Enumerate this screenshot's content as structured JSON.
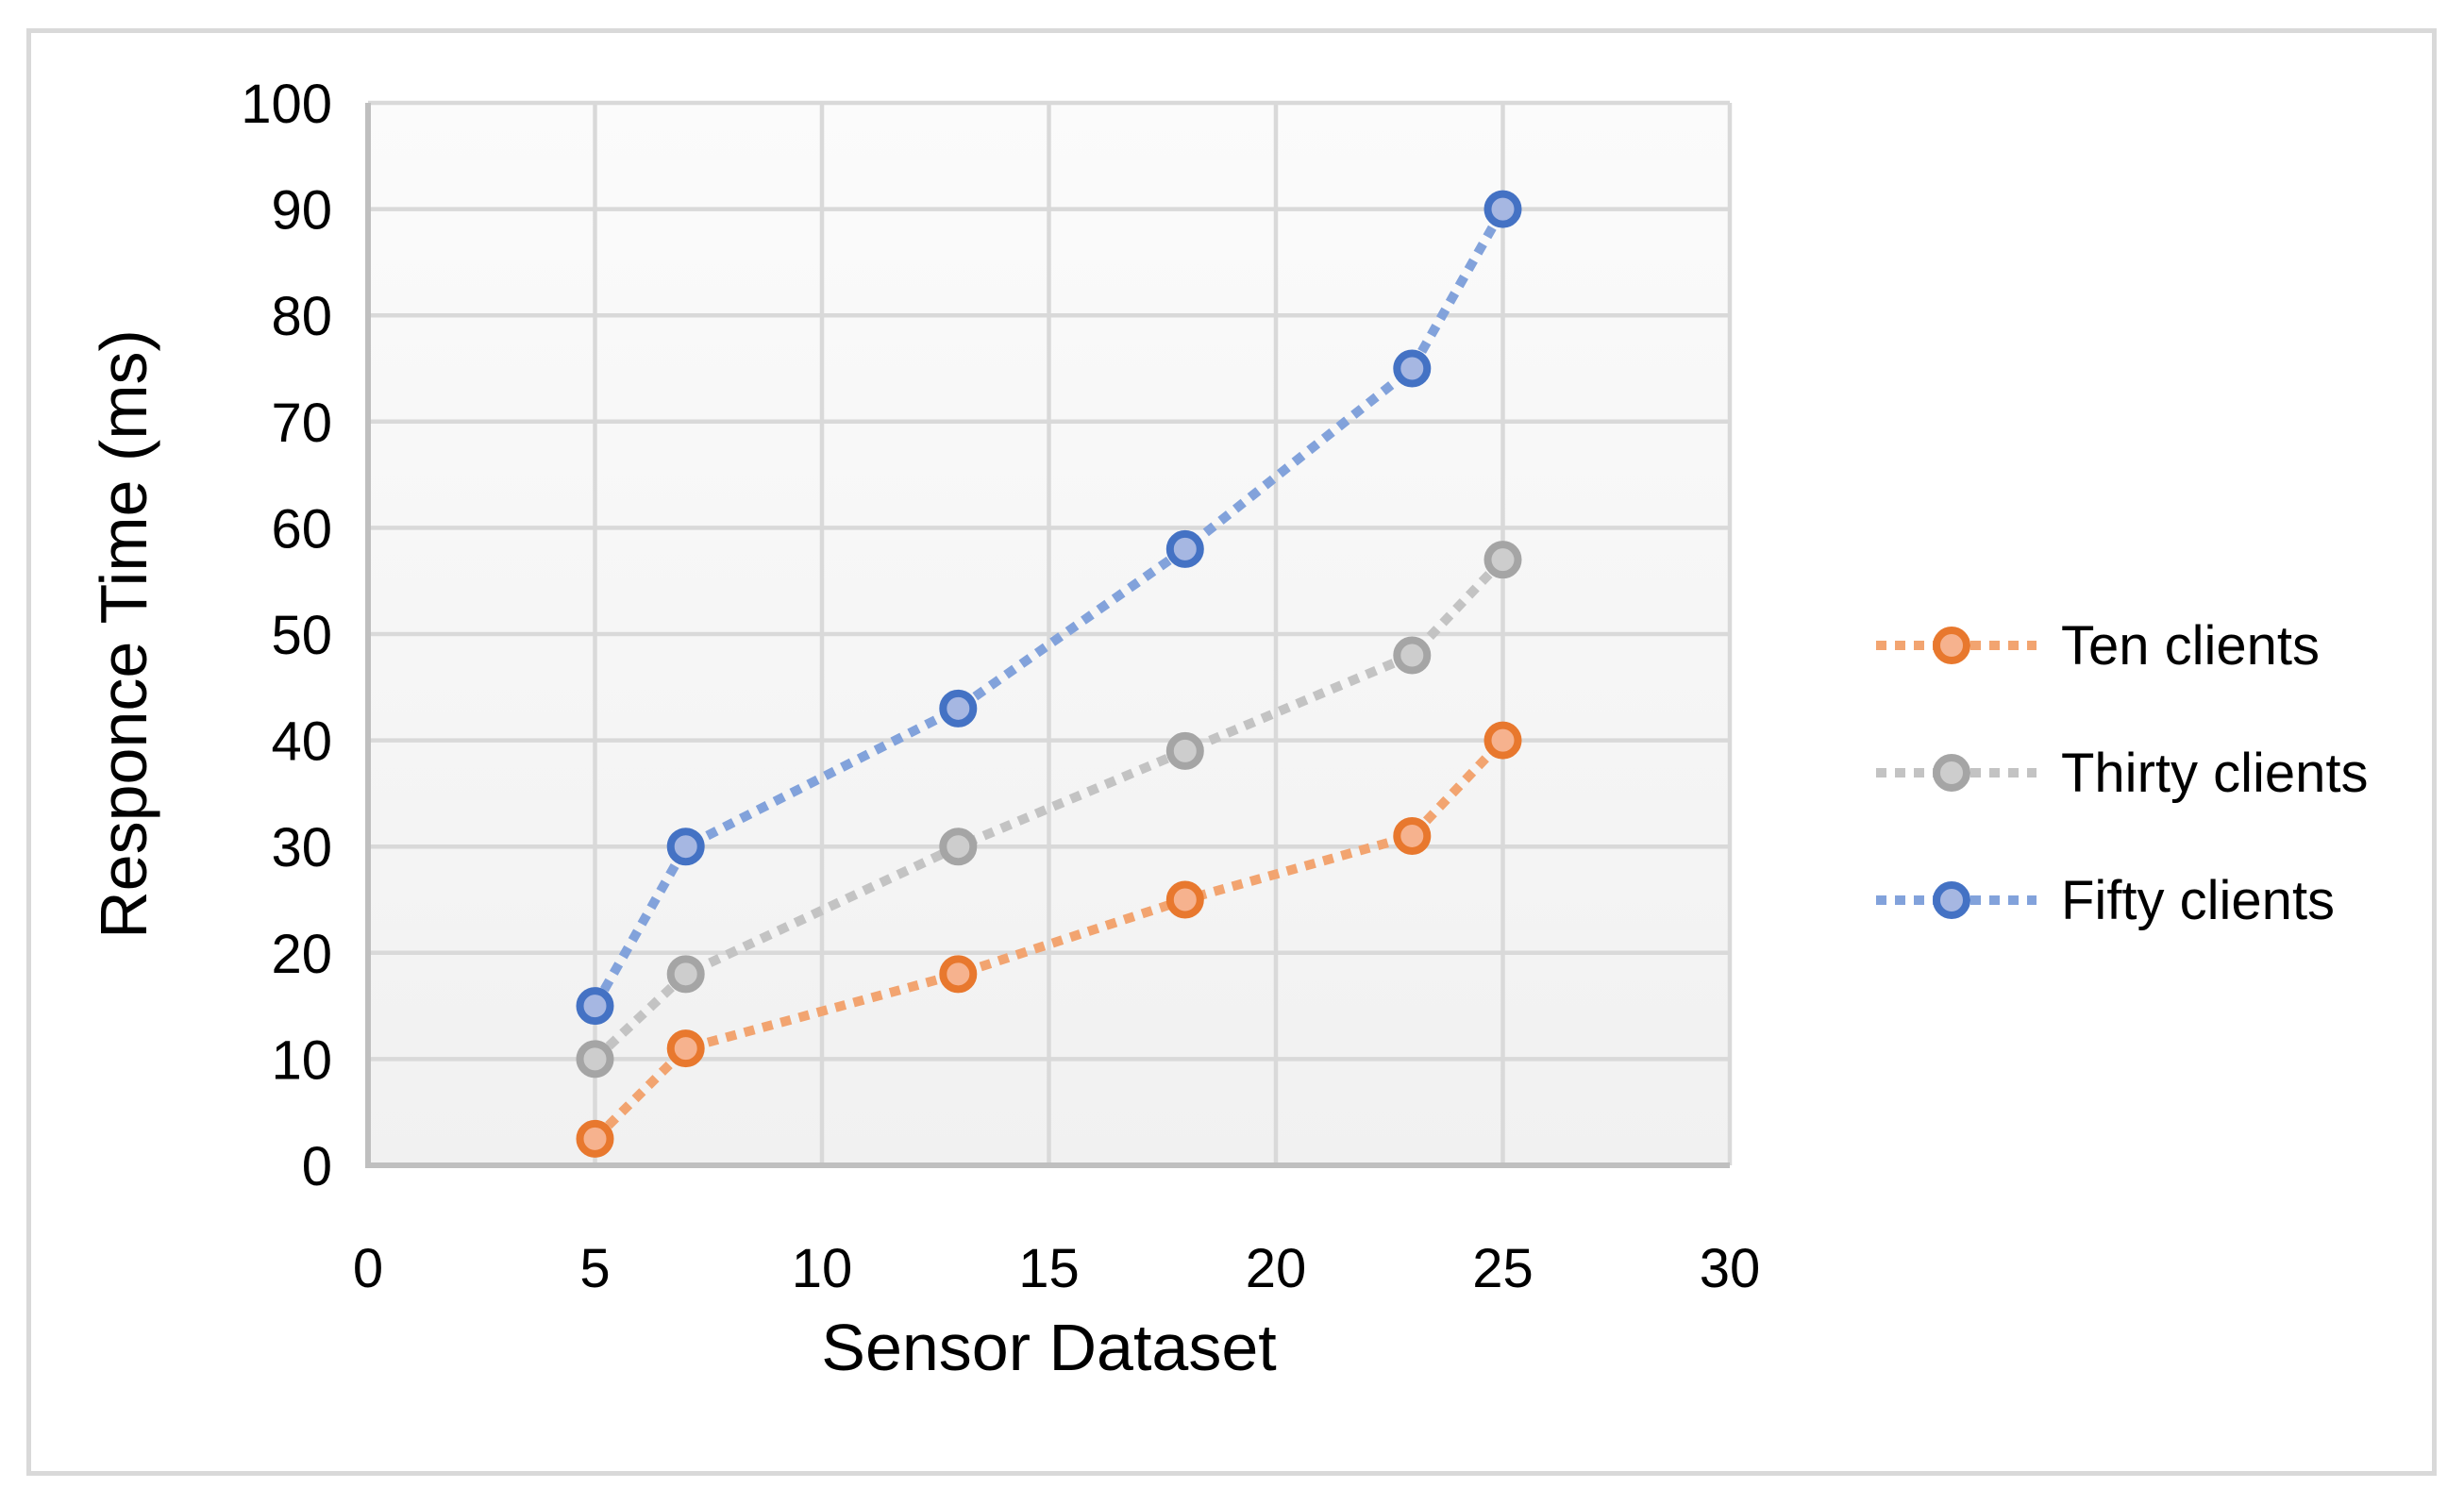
{
  "figure": {
    "border_color": "#D9D9D9",
    "background": "#FFFFFF",
    "plot_bg_top": "#FBFBFB",
    "plot_bg_bottom": "#F1F1F1",
    "grid_color": "#D9D9D9",
    "axis_color": "#BFBFBF",
    "text_color": "#000000"
  },
  "chart_data": {
    "type": "line",
    "title": "",
    "xlabel": "Sensor Dataset",
    "ylabel": "Responce Time (ms)",
    "xlim": [
      0,
      30
    ],
    "ylim": [
      0,
      100
    ],
    "x_ticks": [
      0,
      5,
      10,
      15,
      20,
      25,
      30
    ],
    "y_ticks": [
      0,
      10,
      20,
      30,
      40,
      50,
      60,
      70,
      80,
      90,
      100
    ],
    "grid": true,
    "line_style": "dotted",
    "marker_shape": "circle",
    "legend_position": "right",
    "x": [
      5,
      7,
      13,
      18,
      23,
      25
    ],
    "series": [
      {
        "name": "Ten clients",
        "values": [
          2.5,
          11,
          18,
          25,
          31,
          40
        ],
        "line_color": "#F2A470",
        "marker_fill": "#F6B28E",
        "marker_stroke": "#E8782E"
      },
      {
        "name": "Thirty clients",
        "values": [
          10,
          18,
          30,
          39,
          48,
          57
        ],
        "line_color": "#C3C3C3",
        "marker_fill": "#CDCDCD",
        "marker_stroke": "#A5A5A5"
      },
      {
        "name": "Fifty clients",
        "values": [
          15,
          30,
          43,
          58,
          75,
          90
        ],
        "line_color": "#82A2DB",
        "marker_fill": "#A6B7E2",
        "marker_stroke": "#4472C4"
      }
    ]
  }
}
